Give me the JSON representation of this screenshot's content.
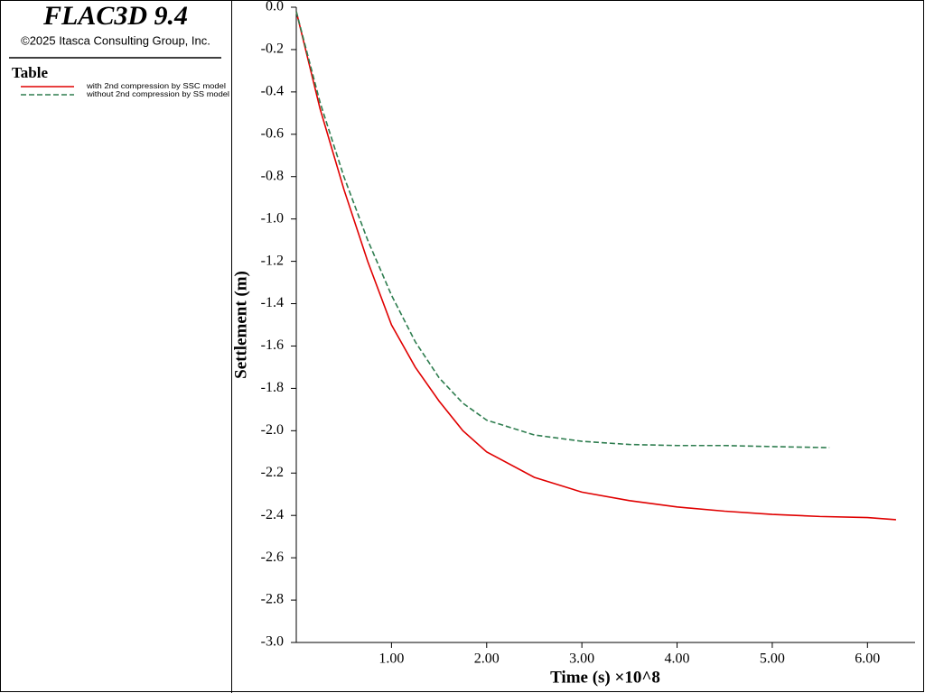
{
  "header": {
    "title": "FLAC3D 9.4",
    "copyright": "©2025 Itasca Consulting Group, Inc.",
    "legend_title": "Table"
  },
  "chart_data": {
    "type": "line",
    "x_label": "Time (s) ×10^8",
    "y_label": "Settlement (m)",
    "xlim": [
      0,
      6.5
    ],
    "ylim": [
      -3,
      0
    ],
    "xticks": [
      {
        "value": 1,
        "label": "1.00"
      },
      {
        "value": 2,
        "label": "2.00"
      },
      {
        "value": 3,
        "label": "3.00"
      },
      {
        "value": 4,
        "label": "4.00"
      },
      {
        "value": 5,
        "label": "5.00"
      },
      {
        "value": 6,
        "label": "6.00"
      }
    ],
    "yticks": [
      {
        "value": 0,
        "label": "0.0"
      },
      -0.2,
      -0.4,
      -0.6,
      -0.8,
      {
        "value": -1,
        "label": "-1.0"
      },
      -1.2,
      -1.4,
      -1.6,
      -1.8,
      {
        "value": -2,
        "label": "-2.0"
      },
      -2.2,
      -2.4,
      -2.6,
      -2.8,
      {
        "value": -3,
        "label": "-3.0"
      }
    ],
    "series": [
      {
        "name": "with 2nd compression by SSC model",
        "color": "#e00000",
        "dash": false,
        "x": [
          0,
          0.25,
          0.5,
          0.75,
          1,
          1.25,
          1.5,
          1.75,
          2,
          2.5,
          3,
          3.5,
          4,
          4.5,
          5,
          5.5,
          6,
          6.3
        ],
        "values": [
          -0.02,
          -0.48,
          -0.86,
          -1.2,
          -1.5,
          -1.7,
          -1.86,
          -2.0,
          -2.1,
          -2.22,
          -2.29,
          -2.33,
          -2.36,
          -2.38,
          -2.395,
          -2.405,
          -2.41,
          -2.42
        ]
      },
      {
        "name": "without 2nd compression by SS model",
        "color": "#2e7d4f",
        "dash": true,
        "x": [
          0,
          0.25,
          0.5,
          0.75,
          1,
          1.25,
          1.5,
          1.75,
          2,
          2.5,
          3,
          3.5,
          4,
          4.5,
          5,
          5.6
        ],
        "values": [
          -0.02,
          -0.45,
          -0.8,
          -1.1,
          -1.36,
          -1.58,
          -1.75,
          -1.87,
          -1.95,
          -2.02,
          -2.05,
          -2.065,
          -2.07,
          -2.07,
          -2.075,
          -2.08
        ]
      }
    ]
  }
}
